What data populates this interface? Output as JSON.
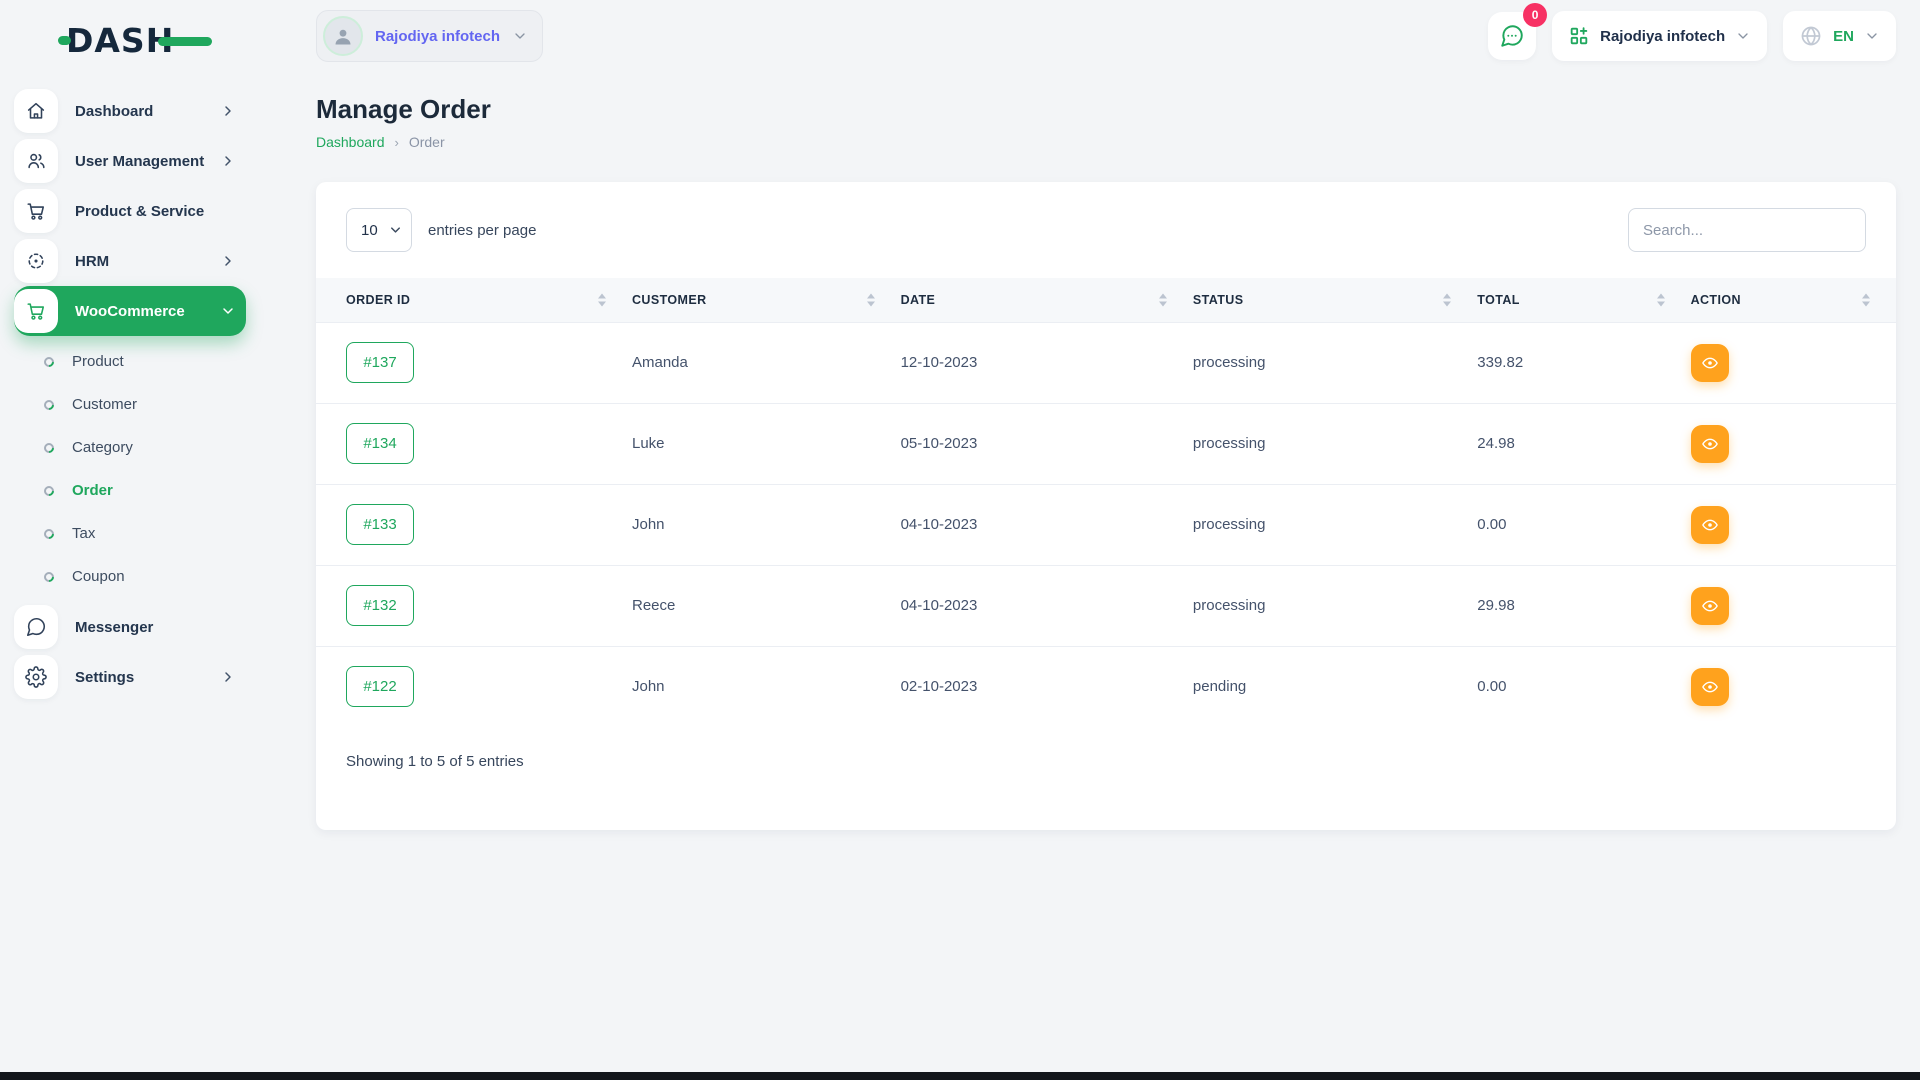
{
  "colors": {
    "accent_green": "#1fa75d",
    "action_orange": "#ffa21d",
    "badge_pink": "#f73164",
    "workspace_purple": "#6366f1",
    "text_dark": "#1c2a3a"
  },
  "brand": {
    "name": "DASH"
  },
  "topbar": {
    "workspace": {
      "label": "Rajodiya infotech"
    },
    "messages_badge": "0",
    "company": {
      "label": "Rajodiya infotech"
    },
    "language": {
      "label": "EN"
    }
  },
  "sidebar": {
    "items": [
      {
        "label": "Dashboard",
        "icon": "home-icon",
        "chevron": "right"
      },
      {
        "label": "User Management",
        "icon": "users-icon",
        "chevron": "right"
      },
      {
        "label": "Product & Service",
        "icon": "cart-icon",
        "chevron": ""
      },
      {
        "label": "HRM",
        "icon": "target-icon",
        "chevron": "right"
      },
      {
        "label": "WooCommerce",
        "icon": "cart-icon",
        "chevron": "down",
        "active": true,
        "children": [
          {
            "label": "Product"
          },
          {
            "label": "Customer"
          },
          {
            "label": "Category"
          },
          {
            "label": "Order",
            "active": true
          },
          {
            "label": "Tax"
          },
          {
            "label": "Coupon"
          }
        ]
      },
      {
        "label": "Messenger",
        "icon": "chat-icon",
        "chevron": ""
      },
      {
        "label": "Settings",
        "icon": "gear-icon",
        "chevron": "right"
      }
    ]
  },
  "page": {
    "title": "Manage Order",
    "breadcrumb": [
      {
        "label": "Dashboard"
      },
      {
        "label": "Order"
      }
    ]
  },
  "table_card": {
    "page_size": "10",
    "page_size_label": "entries per page",
    "search_placeholder": "Search...",
    "columns": [
      "ORDER ID",
      "CUSTOMER",
      "DATE",
      "STATUS",
      "TOTAL",
      "ACTION"
    ],
    "rows": [
      {
        "order_id": "#137",
        "customer": "Amanda",
        "date": "12-10-2023",
        "status": "processing",
        "total": "339.82"
      },
      {
        "order_id": "#134",
        "customer": "Luke",
        "date": "05-10-2023",
        "status": "processing",
        "total": "24.98"
      },
      {
        "order_id": "#133",
        "customer": "John",
        "date": "04-10-2023",
        "status": "processing",
        "total": "0.00"
      },
      {
        "order_id": "#132",
        "customer": "Reece",
        "date": "04-10-2023",
        "status": "processing",
        "total": "29.98"
      },
      {
        "order_id": "#122",
        "customer": "John",
        "date": "02-10-2023",
        "status": "pending",
        "total": "0.00"
      }
    ],
    "footer": "Showing 1 to 5 of 5 entries"
  }
}
